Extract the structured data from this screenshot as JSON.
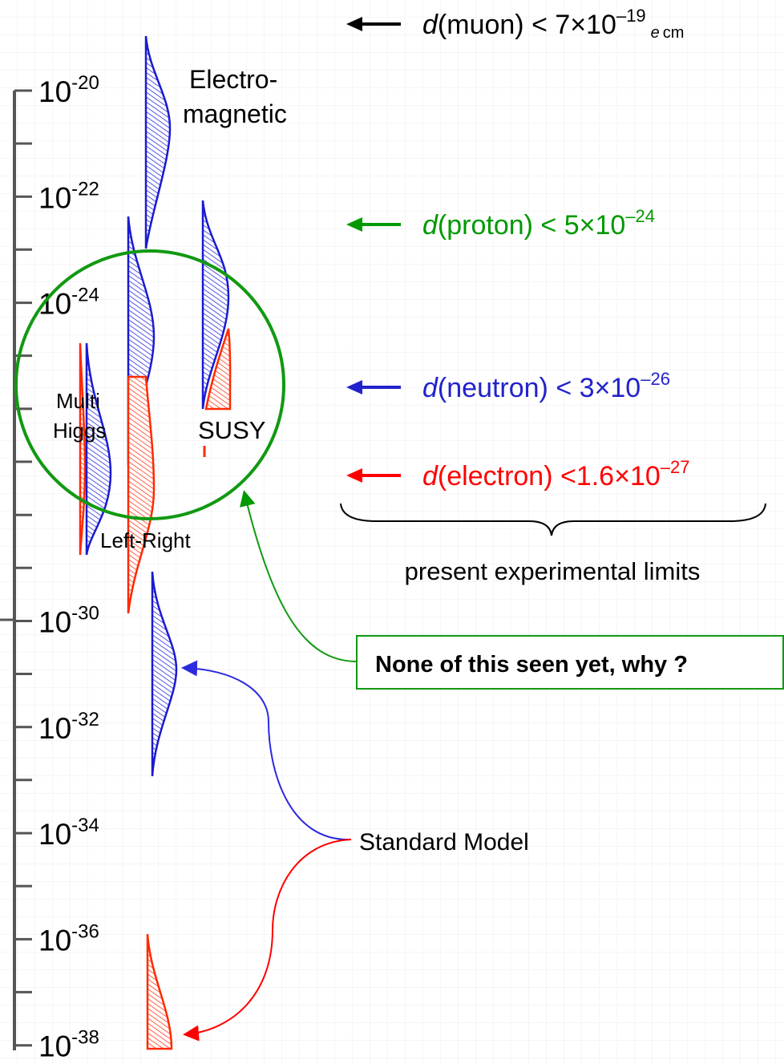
{
  "axis": {
    "tick_labels": [
      {
        "base": "10",
        "exponent": "-20"
      },
      {
        "base": "10",
        "exponent": "-22"
      },
      {
        "base": "10",
        "exponent": "-24"
      },
      {
        "base": "10",
        "exponent": "-30"
      },
      {
        "base": "10",
        "exponent": "-32"
      },
      {
        "base": "10",
        "exponent": "-34"
      },
      {
        "base": "10",
        "exponent": "-36"
      },
      {
        "base": "10",
        "exponent": "-38"
      }
    ]
  },
  "limits": [
    {
      "symbol": "d",
      "text": "(muon) < 7×10",
      "exponent": "–19",
      "unit_symbol": "e",
      "unit": "cm",
      "color": "#000000"
    },
    {
      "symbol": "d",
      "text": "(proton) < 5×10",
      "exponent": "–24",
      "color": "#009900"
    },
    {
      "symbol": "d",
      "text": "(neutron) < 3×10",
      "exponent": "–26",
      "color": "#2222cc"
    },
    {
      "symbol": "d",
      "text": "(electron) <1.6×10",
      "exponent": "–27",
      "color": "#ff0000"
    }
  ],
  "limits_caption": "present experimental limits",
  "models": {
    "electromagnetic": [
      "Electro-",
      "magnetic"
    ],
    "multi_higgs": [
      "Multi",
      "Higgs"
    ],
    "susy": "SUSY",
    "left_right": "Left-Right",
    "standard_model": "Standard Model"
  },
  "question_box": "None of this seen yet, why ?"
}
